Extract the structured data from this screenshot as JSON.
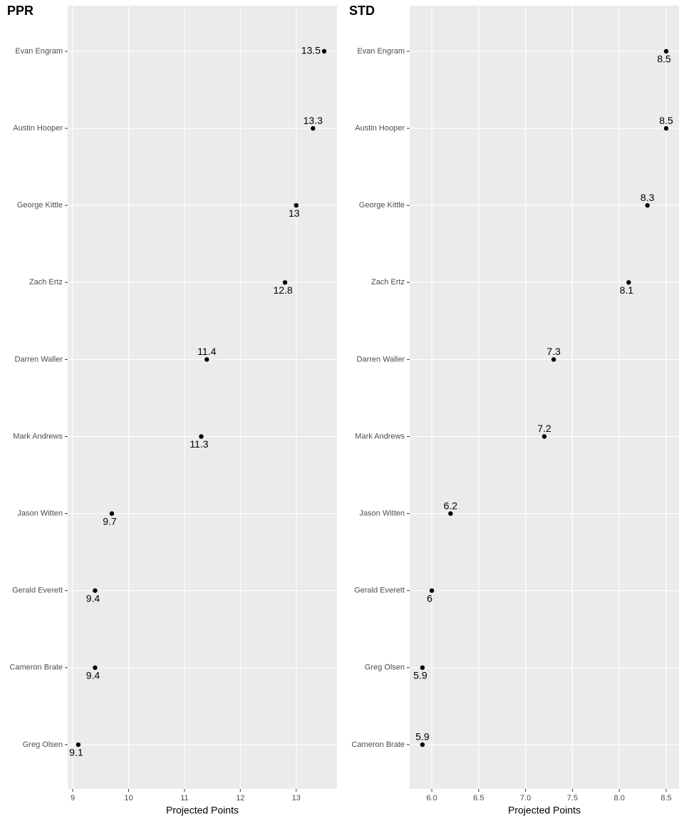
{
  "chart_data": [
    {
      "type": "dot",
      "title": "PPR",
      "x_label": "Projected Points",
      "categories": [
        "Evan Engram",
        "Austin Hooper",
        "George Kittle",
        "Zach Ertz",
        "Darren Waller",
        "Mark Andrews",
        "Jason Witten",
        "Gerald Everett",
        "Cameron Brate",
        "Greg Olsen"
      ],
      "values": [
        13.5,
        13.3,
        13,
        12.8,
        11.4,
        11.3,
        9.7,
        9.4,
        9.4,
        9.1
      ],
      "color": "#000000",
      "xlim": [
        8.91,
        13.73
      ],
      "xticks": [
        9,
        10,
        11,
        12,
        13
      ],
      "grid": true
    },
    {
      "type": "dot",
      "title": "STD",
      "x_label": "Projected Points",
      "categories": [
        "Evan Engram",
        "Austin Hooper",
        "George Kittle",
        "Zach Ertz",
        "Darren Waller",
        "Mark Andrews",
        "Jason Witten",
        "Gerald Everett",
        "Greg Olsen",
        "Cameron Brate"
      ],
      "values": [
        8.5,
        8.5,
        8.3,
        8.1,
        7.3,
        7.2,
        6.2,
        6,
        5.9,
        5.9
      ],
      "color": "#000000",
      "xlim": [
        5.764,
        8.637
      ],
      "xticks": [
        {
          "value": 6,
          "label": "6.0"
        },
        6.5,
        {
          "value": 7,
          "label": "7.0"
        },
        7.5,
        {
          "value": 8,
          "label": "8.0"
        },
        8.5
      ],
      "grid": true
    }
  ]
}
